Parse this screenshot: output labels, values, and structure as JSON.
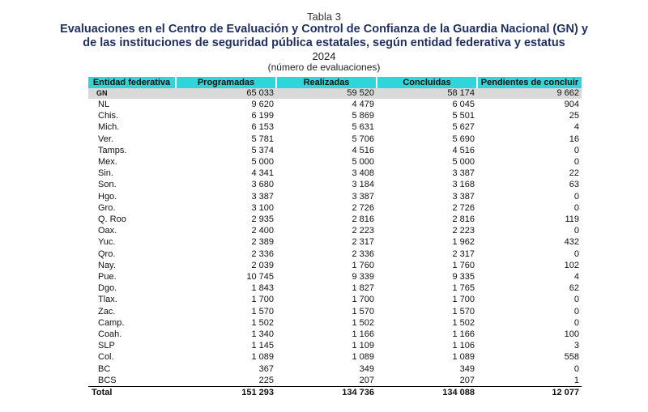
{
  "caption": {
    "tabla": "Tabla 3",
    "title_line1": "Evaluaciones en el Centro de Evaluación y Control de Confianza de la Guardia Nacional (GN) y",
    "title_line2": "de las instituciones de seguridad pública estatales, según entidad federativa y estatus",
    "year": "2024",
    "unit": "(número de evaluaciones)"
  },
  "table": {
    "headers": [
      "Entidad federativa",
      "Programadas",
      "Realizadas",
      "Concluidas",
      "Pendientes de concluir"
    ],
    "gn_row": [
      "GN",
      "65 033",
      "59 520",
      "58 174",
      "9 662"
    ],
    "rows": [
      [
        "NL",
        "9 620",
        "4 479",
        "6 045",
        "904"
      ],
      [
        "Chis.",
        "6 199",
        "5 869",
        "5 501",
        "25"
      ],
      [
        "Mich.",
        "6 153",
        "5 631",
        "5 627",
        "4"
      ],
      [
        "Ver.",
        "5 781",
        "5 706",
        "5 690",
        "16"
      ],
      [
        "Tamps.",
        "5 374",
        "4 516",
        "4 516",
        "0"
      ],
      [
        "Mex.",
        "5 000",
        "5 000",
        "5 000",
        "0"
      ],
      [
        "Sin.",
        "4 341",
        "3 408",
        "3 387",
        "22"
      ],
      [
        "Son.",
        "3 680",
        "3 184",
        "3 168",
        "63"
      ],
      [
        "Hgo.",
        "3 387",
        "3 387",
        "3 387",
        "0"
      ],
      [
        "Gro.",
        "3 100",
        "2 726",
        "2 726",
        "0"
      ],
      [
        "Q. Roo",
        "2 935",
        "2 816",
        "2 816",
        "119"
      ],
      [
        "Oax.",
        "2 400",
        "2 223",
        "2 223",
        "0"
      ],
      [
        "Yuc.",
        "2 389",
        "2 317",
        "1 962",
        "432"
      ],
      [
        "Qro.",
        "2 336",
        "2 336",
        "2 317",
        "0"
      ],
      [
        "Nay.",
        "2 039",
        "1 760",
        "1 760",
        "102"
      ],
      [
        "Pue.",
        "10 745",
        "9 339",
        "9 335",
        "4"
      ],
      [
        "Dgo.",
        "1 843",
        "1 827",
        "1 765",
        "62"
      ],
      [
        "Tlax.",
        "1 700",
        "1 700",
        "1 700",
        "0"
      ],
      [
        "Zac.",
        "1 570",
        "1 570",
        "1 570",
        "0"
      ],
      [
        "Camp.",
        "1 502",
        "1 502",
        "1 502",
        "0"
      ],
      [
        "Coah.",
        "1 340",
        "1 166",
        "1 166",
        "100"
      ],
      [
        "SLP",
        "1 145",
        "1 109",
        "1 106",
        "3"
      ],
      [
        "Col.",
        "1 089",
        "1 089",
        "1 089",
        "558"
      ],
      [
        "BC",
        "367",
        "349",
        "349",
        "0"
      ],
      [
        "BCS",
        "225",
        "207",
        "207",
        "1"
      ]
    ],
    "total_row": [
      "Total",
      "151 293",
      "134 736",
      "134 088",
      "12 077"
    ]
  }
}
